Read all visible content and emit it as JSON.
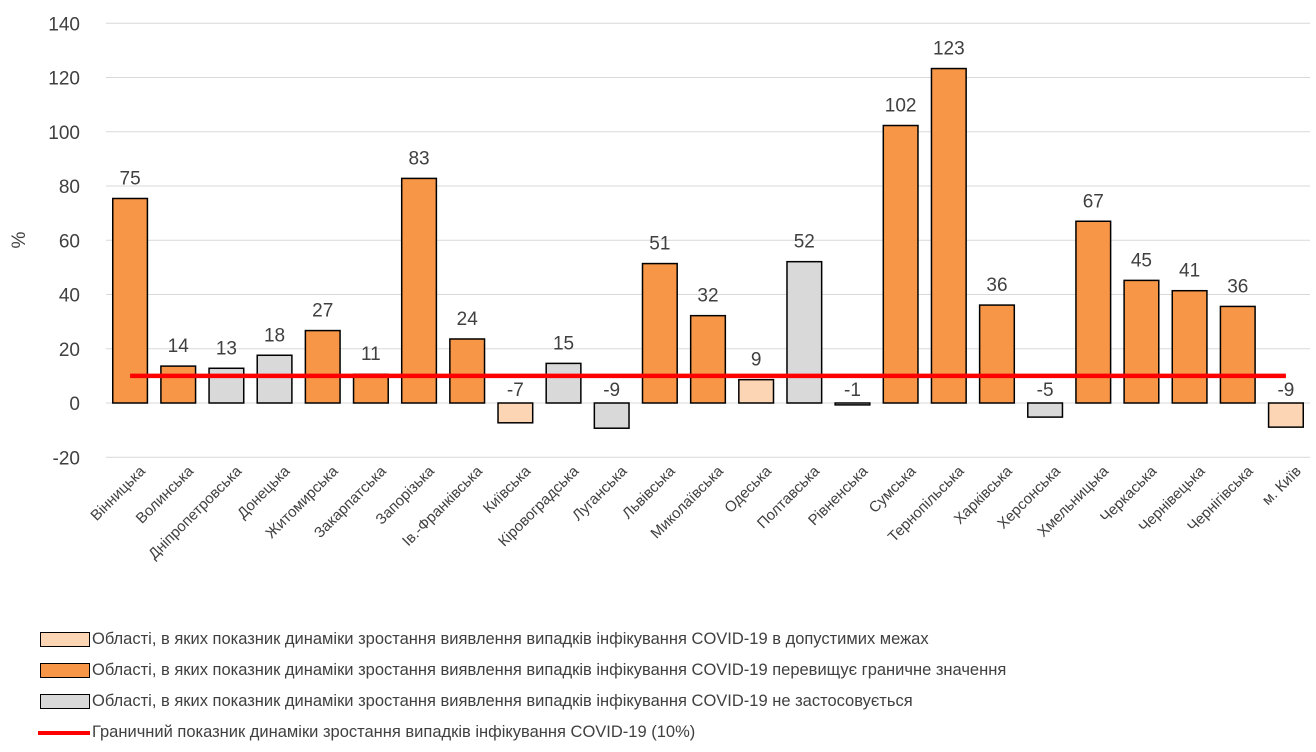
{
  "chart_data": {
    "type": "bar",
    "title": "",
    "xlabel": "",
    "ylabel": "%",
    "ylim": [
      -20,
      140
    ],
    "yticks": [
      -20,
      0,
      20,
      40,
      60,
      80,
      100,
      120,
      140
    ],
    "grid": true,
    "legend_position": "bottom",
    "categories": [
      "Вінницька",
      "Волинська",
      "Дніпропетровська",
      "Донецька",
      "Житомирська",
      "Закарпатська",
      "Запорізька",
      "Ів.-Франківська",
      "Київська",
      "Кіровоградська",
      "Луганська",
      "Львівська",
      "Миколаївська",
      "Одеська",
      "Полтавська",
      "Рівненська",
      "Сумська",
      "Тернопільська",
      "Харківська",
      "Херсонська",
      "Хмельницька",
      "Черкаська",
      "Чернівецька",
      "Чернігівська",
      "м. Київ"
    ],
    "values": [
      75.4,
      13.6,
      12.8,
      17.6,
      26.7,
      10.6,
      82.8,
      23.6,
      -7.3,
      14.6,
      -9.3,
      51.4,
      32.2,
      8.6,
      52.1,
      -0.7,
      102.3,
      123.3,
      36.1,
      -5.2,
      67.0,
      45.2,
      41.4,
      35.6,
      -8.9
    ],
    "data_labels": [
      "75",
      "14",
      "13",
      "18",
      "27",
      "11",
      "83",
      "24",
      "-7",
      "15",
      "-9",
      "51",
      "32",
      "9",
      "52",
      "-1",
      "102",
      "123",
      "36",
      "-5",
      "67",
      "45",
      "41",
      "36",
      "-9"
    ],
    "groups": [
      "exceeds",
      "exceeds",
      "na",
      "na",
      "exceeds",
      "exceeds",
      "exceeds",
      "exceeds",
      "allowed",
      "na",
      "na",
      "exceeds",
      "exceeds",
      "allowed",
      "na",
      "na",
      "exceeds",
      "exceeds",
      "exceeds",
      "na",
      "exceeds",
      "exceeds",
      "exceeds",
      "exceeds",
      "allowed"
    ],
    "colors": {
      "allowed": "#FCD5B5",
      "exceeds": "#F79646",
      "na": "#D9D9D9",
      "threshold": "#FF0000",
      "grid": "#D9D9D9",
      "bar_border": "#000000",
      "text": "#404040"
    },
    "threshold": {
      "value": 10,
      "name": "Граничний показник динаміки зростання випадків інфікування COVID-19 (10%)"
    },
    "legend": [
      {
        "key": "allowed",
        "kind": "box",
        "label": "Області, в яких показник динаміки зростання виявлення випадків інфікування COVID-19 в допустимих межах"
      },
      {
        "key": "exceeds",
        "kind": "box",
        "label": "Області, в яких показник динаміки зростання виявлення випадків інфікування COVID-19 перевищує граничне значення"
      },
      {
        "key": "na",
        "kind": "box",
        "label": "Області, в яких показник динаміки зростання виявлення випадків інфікування COVID-19 не застосовується"
      },
      {
        "key": "threshold",
        "kind": "line",
        "label": "Граничний показник динаміки зростання випадків інфікування COVID-19 (10%)"
      }
    ]
  }
}
